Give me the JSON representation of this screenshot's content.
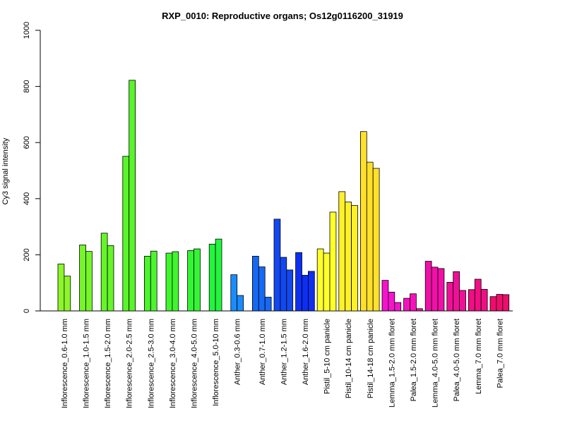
{
  "chart_data": {
    "type": "bar",
    "title": "RXP_0010: Reproductive organs; Os12g0116200_31919",
    "ylabel": "Cy3 signal intensity",
    "xlabel": "",
    "ylim": [
      0,
      1000
    ],
    "yticks": [
      0,
      200,
      400,
      600,
      800,
      1000
    ],
    "grid": false,
    "legend": "none",
    "groups": [
      {
        "label": "Inflorescence_0.6-1.0 mm",
        "color": "#8cf52c",
        "values": [
          167,
          124
        ]
      },
      {
        "label": "Inflorescence_1.0-1.5 mm",
        "color": "#75f52a",
        "values": [
          235,
          212
        ]
      },
      {
        "label": "Inflorescence_1.5-2.0 mm",
        "color": "#66f528",
        "values": [
          277,
          233
        ]
      },
      {
        "label": "Inflorescence_2.0-2.5 mm",
        "color": "#58f52a",
        "values": [
          551,
          822
        ]
      },
      {
        "label": "Inflorescence_2.5-3.0 mm",
        "color": "#4cf52c",
        "values": [
          195,
          213
        ]
      },
      {
        "label": "Inflorescence_3.0-4.0 mm",
        "color": "#40f530",
        "values": [
          206,
          211
        ]
      },
      {
        "label": "Inflorescence_4.0-5.0 mm",
        "color": "#34f534",
        "values": [
          215,
          221
        ]
      },
      {
        "label": "Inflorescence_5.0-10 mm",
        "color": "#22f53e",
        "values": [
          238,
          256
        ]
      },
      {
        "label": "Anther_0.3-0.6 mm",
        "color": "#1a8cff",
        "values": [
          129,
          55
        ]
      },
      {
        "label": "Anther_0.7-1.0 mm",
        "color": "#1669f5",
        "values": [
          195,
          157,
          49
        ]
      },
      {
        "label": "Anther_1.2-1.5 mm",
        "color": "#1248f0",
        "values": [
          327,
          191,
          146
        ]
      },
      {
        "label": "Anther_1.6-2.0 mm",
        "color": "#0e2ef0",
        "values": [
          208,
          127,
          141
        ]
      },
      {
        "label": "Pistil_5-10 cm panicle",
        "color": "#ffff2a",
        "values": [
          221,
          206,
          352
        ]
      },
      {
        "label": "Pistil_10-14 cm panicle",
        "color": "#fff02a",
        "values": [
          425,
          388,
          376
        ]
      },
      {
        "label": "Pistil_14-18 cm panicle",
        "color": "#ffe02a",
        "values": [
          639,
          530,
          508
        ]
      },
      {
        "label": "Lemma_1.5-2.0 mm floret",
        "color": "#f514cc",
        "values": [
          109,
          67,
          30
        ]
      },
      {
        "label": "Palea_1.5-2.0 mm floret",
        "color": "#f512bb",
        "values": [
          45,
          61,
          8
        ]
      },
      {
        "label": "Lemma_4.0-5.0 mm floret",
        "color": "#f010a8",
        "values": [
          177,
          156,
          151
        ]
      },
      {
        "label": "Palea_4.0-5.0 mm floret",
        "color": "#f01098",
        "values": [
          102,
          140,
          73
        ]
      },
      {
        "label": "Lemma_7.0 mm floret",
        "color": "#f00e84",
        "values": [
          76,
          113,
          77
        ]
      },
      {
        "label": "Palea_7.0 mm floret",
        "color": "#f00c6c",
        "values": [
          51,
          59,
          58
        ]
      }
    ]
  }
}
